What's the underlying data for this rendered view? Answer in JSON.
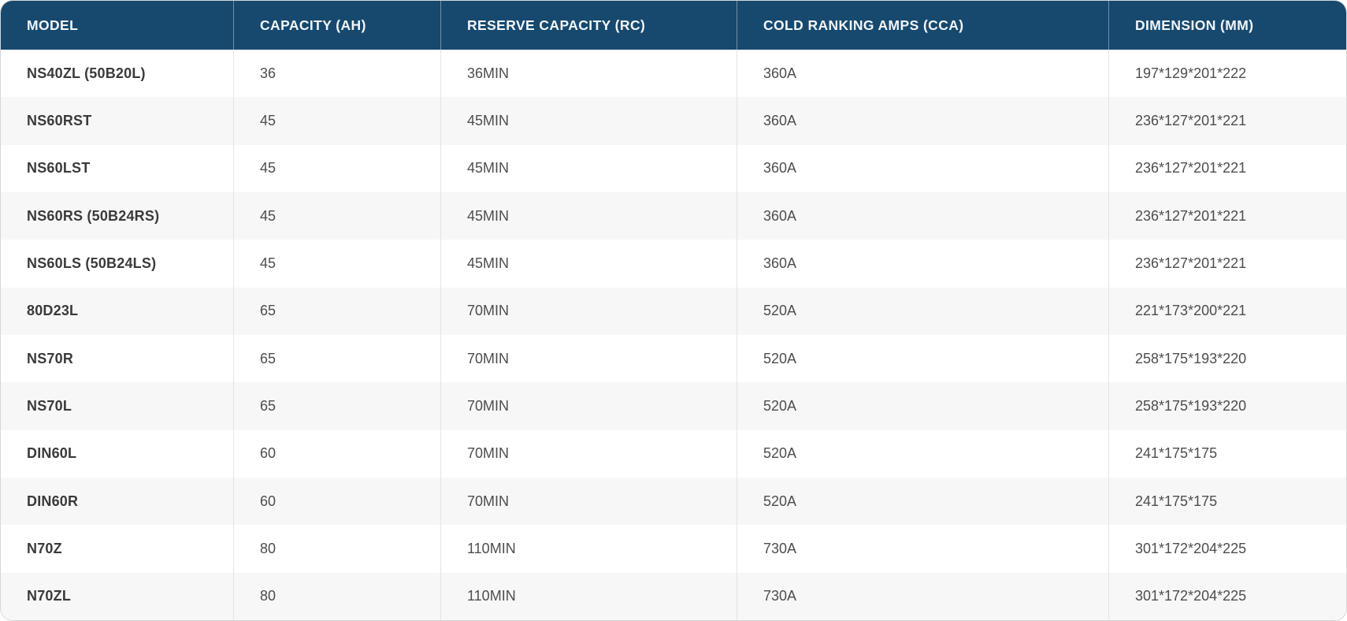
{
  "table": {
    "columns": [
      {
        "key": "model",
        "label": "MODEL"
      },
      {
        "key": "capacity",
        "label": "CAPACITY (AH)"
      },
      {
        "key": "rc",
        "label": "RESERVE CAPACITY (RC)"
      },
      {
        "key": "cca",
        "label": "COLD RANKING AMPS (CCA)"
      },
      {
        "key": "dimension",
        "label": "DIMENSION (MM)"
      }
    ],
    "rows": [
      {
        "model": "NS40ZL (50B20L)",
        "capacity": "36",
        "rc": "36MIN",
        "cca": "360A",
        "dimension": "197*129*201*222"
      },
      {
        "model": "NS60RST",
        "capacity": "45",
        "rc": "45MIN",
        "cca": "360A",
        "dimension": "236*127*201*221"
      },
      {
        "model": "NS60LST",
        "capacity": "45",
        "rc": "45MIN",
        "cca": "360A",
        "dimension": "236*127*201*221"
      },
      {
        "model": "NS60RS (50B24RS)",
        "capacity": "45",
        "rc": "45MIN",
        "cca": "360A",
        "dimension": "236*127*201*221"
      },
      {
        "model": "NS60LS (50B24LS)",
        "capacity": "45",
        "rc": "45MIN",
        "cca": "360A",
        "dimension": "236*127*201*221"
      },
      {
        "model": "80D23L",
        "capacity": "65",
        "rc": "70MIN",
        "cca": "520A",
        "dimension": "221*173*200*221"
      },
      {
        "model": "NS70R",
        "capacity": "65",
        "rc": "70MIN",
        "cca": "520A",
        "dimension": "258*175*193*220"
      },
      {
        "model": "NS70L",
        "capacity": "65",
        "rc": "70MIN",
        "cca": "520A",
        "dimension": "258*175*193*220"
      },
      {
        "model": "DIN60L",
        "capacity": "60",
        "rc": "70MIN",
        "cca": "520A",
        "dimension": "241*175*175"
      },
      {
        "model": "DIN60R",
        "capacity": "60",
        "rc": "70MIN",
        "cca": "520A",
        "dimension": "241*175*175"
      },
      {
        "model": "N70Z",
        "capacity": "80",
        "rc": "110MIN",
        "cca": "730A",
        "dimension": "301*172*204*225"
      },
      {
        "model": "N70ZL",
        "capacity": "80",
        "rc": "110MIN",
        "cca": "730A",
        "dimension": "301*172*204*225"
      }
    ]
  },
  "colors": {
    "header_bg": "#17496F",
    "header_text": "#F3F6F8",
    "row_bg": "#FFFFFF",
    "row_alt_bg": "#F7F7F7",
    "cell_text": "#4D4D4D",
    "model_text": "#3A3A3A",
    "border": "#D7D7D7",
    "separator": "#E4E4E4"
  }
}
